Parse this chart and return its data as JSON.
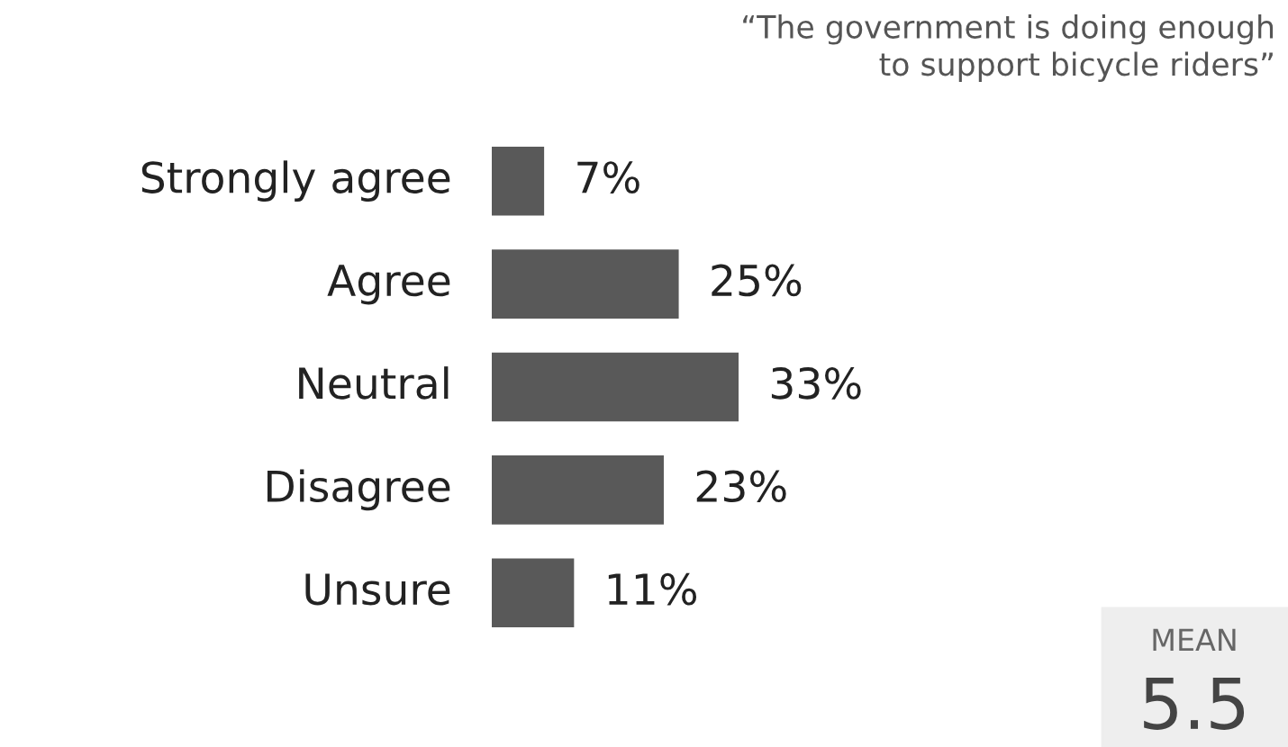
{
  "chart_data": {
    "type": "bar",
    "orientation": "horizontal",
    "title": "“The government is doing enough\nto support bicycle riders”",
    "categories": [
      "Strongly agree",
      "Agree",
      "Neutral",
      "Disagree",
      "Unsure"
    ],
    "values": [
      7,
      25,
      33,
      23,
      11
    ],
    "value_labels": [
      "7%",
      "25%",
      "33%",
      "23%",
      "11%"
    ],
    "color": "#595959",
    "annotations": [
      "MEAN",
      "5.5"
    ]
  }
}
